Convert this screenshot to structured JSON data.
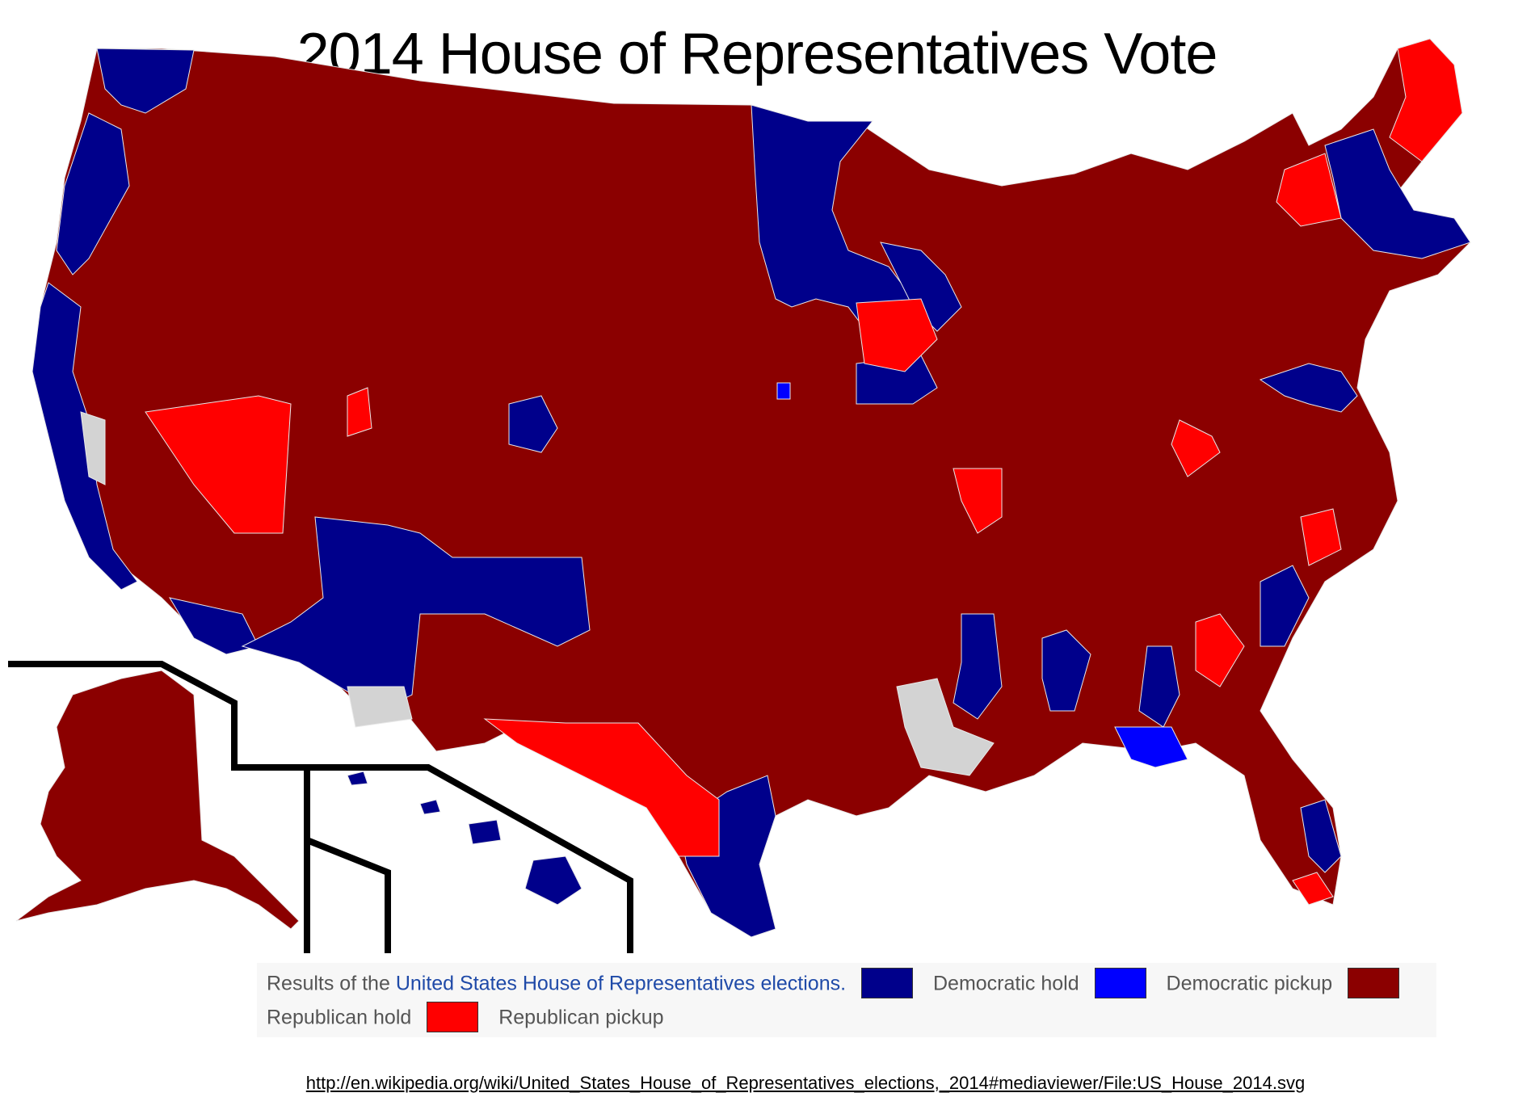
{
  "title": "2014 House of Representatives Vote",
  "legend": {
    "intro": "Results of the",
    "link_text": "United States House of Representatives elections.",
    "items": [
      {
        "label": "Democratic hold",
        "color": "#00008b"
      },
      {
        "label": "Democratic pickup",
        "color": "#0000ff"
      },
      {
        "label": "Republican hold",
        "color": "#8b0000"
      },
      {
        "label": "Republican pickup",
        "color": "#ff0000"
      }
    ]
  },
  "no_data_color": "#d3d3d3",
  "source_url": "http://en.wikipedia.org/wiki/United_States_House_of_Representatives_elections,_2014#mediaviewer/File:US_House_2014.svg"
}
